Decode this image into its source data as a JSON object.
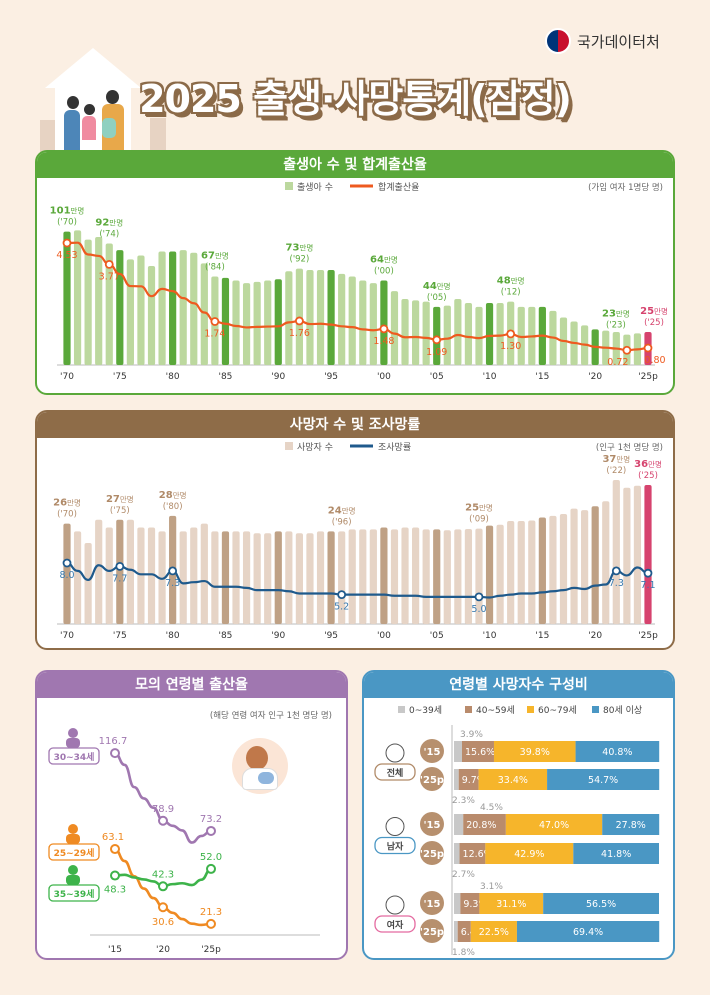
{
  "header": {
    "agency": "국가데이터처",
    "title": "2025 출생·사망통계(잠정)"
  },
  "colors": {
    "green": "#5aa83a",
    "lightgreen": "#bcd89e",
    "orange": "#ee5a1f",
    "pink": "#d6436e",
    "brown": "#8e6c48",
    "lightbrown": "#e6d4c6",
    "midbrown": "#bfa185",
    "navy": "#1f5a8c",
    "purple": "#a077b0",
    "blue": "#4a97c4",
    "gray": "#c8c8c8",
    "tan": "#b98b6c",
    "yellow": "#f6b52b"
  },
  "chart_data": [
    {
      "type": "bar+line",
      "title": "출생아 수 및 합계출산율",
      "legend": [
        "출생아 수",
        "합계출산율"
      ],
      "unit_note": "(가임 여자 1명당 명)",
      "x_ticks": [
        "'70",
        "'75",
        "'80",
        "'85",
        "'90",
        "'95",
        "'00",
        "'05",
        "'10",
        "'15",
        "'20",
        "'25p"
      ],
      "years": [
        1970,
        1971,
        1972,
        1973,
        1974,
        1975,
        1976,
        1977,
        1978,
        1979,
        1980,
        1981,
        1982,
        1983,
        1984,
        1985,
        1986,
        1987,
        1988,
        1989,
        1990,
        1991,
        1992,
        1993,
        1994,
        1995,
        1996,
        1997,
        1998,
        1999,
        2000,
        2001,
        2002,
        2003,
        2004,
        2005,
        2006,
        2007,
        2008,
        2009,
        2010,
        2011,
        2012,
        2013,
        2014,
        2015,
        2016,
        2017,
        2018,
        2019,
        2020,
        2021,
        2022,
        2023,
        2024,
        2025
      ],
      "births_10k": [
        101,
        102,
        95,
        97,
        92,
        87,
        80,
        83,
        75,
        86,
        86,
        87,
        85,
        77,
        67,
        66,
        64,
        62,
        63,
        64,
        65,
        71,
        73,
        72,
        72,
        72,
        69,
        67,
        64,
        62,
        64,
        56,
        50,
        49,
        48,
        44,
        45,
        50,
        47,
        44,
        47,
        47,
        48,
        44,
        44,
        44,
        41,
        36,
        33,
        30,
        27,
        26,
        25,
        23,
        24,
        25
      ],
      "tfr": [
        4.53,
        4.54,
        4.12,
        4.07,
        3.77,
        3.43,
        3.0,
        2.99,
        2.64,
        2.9,
        2.82,
        2.57,
        2.39,
        2.06,
        1.74,
        1.66,
        1.58,
        1.53,
        1.55,
        1.56,
        1.57,
        1.71,
        1.76,
        1.65,
        1.66,
        1.63,
        1.57,
        1.54,
        1.46,
        1.43,
        1.48,
        1.31,
        1.18,
        1.19,
        1.16,
        1.09,
        1.13,
        1.26,
        1.19,
        1.15,
        1.23,
        1.24,
        1.3,
        1.19,
        1.21,
        1.24,
        1.17,
        1.05,
        0.98,
        0.92,
        0.84,
        0.81,
        0.78,
        0.72,
        0.75,
        0.8
      ],
      "bar_labels": [
        {
          "year": 1970,
          "value": "101",
          "unit": "만명",
          "sub": "('70)"
        },
        {
          "year": 1974,
          "value": "92",
          "unit": "만명",
          "sub": "('74)"
        },
        {
          "year": 1984,
          "value": "67",
          "unit": "만명",
          "sub": "('84)"
        },
        {
          "year": 1992,
          "value": "73",
          "unit": "만명",
          "sub": "('92)"
        },
        {
          "year": 2000,
          "value": "64",
          "unit": "만명",
          "sub": "('00)"
        },
        {
          "year": 2005,
          "value": "44",
          "unit": "만명",
          "sub": "('05)"
        },
        {
          "year": 2012,
          "value": "48",
          "unit": "만명",
          "sub": "('12)"
        },
        {
          "year": 2023,
          "value": "23",
          "unit": "만명",
          "sub": "('23)"
        },
        {
          "year": 2025,
          "value": "25",
          "unit": "만명",
          "sub": "('25)"
        }
      ],
      "line_labels": [
        {
          "year": 1970,
          "text": "4.53"
        },
        {
          "year": 1974,
          "text": "3.77"
        },
        {
          "year": 1984,
          "text": "1.74"
        },
        {
          "year": 1992,
          "text": "1.76"
        },
        {
          "year": 2000,
          "text": "1.48"
        },
        {
          "year": 2005,
          "text": "1.09"
        },
        {
          "year": 2012,
          "text": "1.30"
        },
        {
          "year": 2023,
          "text": "0.72"
        },
        {
          "year": 2025,
          "text": "0.80"
        }
      ]
    },
    {
      "type": "bar+line",
      "title": "사망자 수 및 조사망률",
      "legend": [
        "사망자 수",
        "조사망률"
      ],
      "unit_note": "(인구 1천 명당 명)",
      "x_ticks": [
        "'70",
        "'75",
        "'80",
        "'85",
        "'90",
        "'95",
        "'00",
        "'05",
        "'10",
        "'15",
        "'20",
        "'25p"
      ],
      "deaths_10k": [
        26,
        24,
        21,
        27,
        25,
        27,
        27,
        25,
        25,
        24,
        28,
        24,
        25,
        26,
        24,
        24,
        24,
        24,
        23.5,
        23.5,
        24,
        24,
        23.5,
        23.5,
        24,
        24,
        24,
        24.5,
        24.5,
        24.5,
        25,
        24.5,
        25,
        25,
        24.5,
        24.5,
        24.3,
        24.5,
        24.6,
        24.7,
        25.5,
        25.7,
        26.7,
        26.7,
        26.8,
        27.6,
        28,
        28.5,
        29.9,
        29.5,
        30.5,
        31.8,
        37.3,
        35.3,
        35.8,
        36
      ],
      "cdr": [
        8.0,
        7.3,
        6.5,
        7.8,
        7.3,
        7.7,
        7.4,
        7.0,
        7.0,
        6.6,
        7.3,
        6.2,
        6.3,
        6.4,
        5.9,
        5.9,
        5.9,
        5.8,
        5.6,
        5.6,
        5.6,
        5.5,
        5.3,
        5.3,
        5.3,
        5.3,
        5.2,
        5.2,
        5.2,
        5.2,
        5.2,
        5.1,
        5.1,
        5.1,
        5.0,
        5.0,
        5.0,
        5.0,
        5.0,
        5.0,
        4.95,
        5.1,
        5.2,
        5.3,
        5.3,
        5.4,
        5.5,
        5.6,
        5.8,
        5.7,
        6.0,
        6.1,
        7.3,
        6.9,
        7.6,
        7.1
      ],
      "bar_labels": [
        {
          "year": 1970,
          "value": "26",
          "unit": "만명",
          "sub": "('70)"
        },
        {
          "year": 1975,
          "value": "27",
          "unit": "만명",
          "sub": "('75)"
        },
        {
          "year": 1980,
          "value": "28",
          "unit": "만명",
          "sub": "('80)"
        },
        {
          "year": 1996,
          "value": "24",
          "unit": "만명",
          "sub": "('96)"
        },
        {
          "year": 2009,
          "value": "25",
          "unit": "만명",
          "sub": "('09)"
        },
        {
          "year": 2022,
          "value": "37",
          "unit": "만명",
          "sub": "('22)"
        },
        {
          "year": 2025,
          "value": "36",
          "unit": "만명",
          "sub": "('25)"
        }
      ],
      "line_labels": [
        {
          "year": 1970,
          "text": "8.0"
        },
        {
          "year": 1975,
          "text": "7.7"
        },
        {
          "year": 1980,
          "text": "7.3"
        },
        {
          "year": 1996,
          "text": "5.2"
        },
        {
          "year": 2009,
          "text": "5.0"
        },
        {
          "year": 2022,
          "text": "7.3"
        },
        {
          "year": 2025,
          "text": "7.1"
        }
      ]
    },
    {
      "type": "line",
      "title": "모의 연령별 출산율",
      "unit_note": "(해당 연령 여자 인구 1천 명당 명)",
      "x_ticks": [
        "'15",
        "'20",
        "'25p"
      ],
      "years": [
        2015,
        2016,
        2017,
        2018,
        2019,
        2020,
        2021,
        2022,
        2023,
        2024,
        2025
      ],
      "series": [
        {
          "name": "30~34세",
          "color": "#a077b0",
          "values": [
            116.7,
            110.1,
            97.7,
            91.4,
            86.2,
            78.9,
            76.1,
            73.5,
            66.7,
            70.4,
            73.2
          ],
          "labels": [
            "116.7",
            "78.9",
            "73.2"
          ]
        },
        {
          "name": "25~29세",
          "color": "#ef8a22",
          "values": [
            63.1,
            56.4,
            47.9,
            41.0,
            35.7,
            30.6,
            27.5,
            24.0,
            21.4,
            20.7,
            21.3
          ],
          "labels": [
            "63.1",
            "30.6",
            "21.3"
          ]
        },
        {
          "name": "35~39세",
          "color": "#3db34a",
          "values": [
            48.3,
            48.7,
            47.2,
            46.1,
            45.0,
            42.3,
            43.5,
            44.0,
            43.0,
            46.0,
            52.0
          ],
          "labels": [
            "48.3",
            "42.3",
            "52.0"
          ]
        }
      ]
    },
    {
      "type": "stacked-bar",
      "title": "연령별 사망자수 구성비",
      "legend": [
        "0~39세",
        "40~59세",
        "60~79세",
        "80세 이상"
      ],
      "groups": [
        {
          "name": "전체",
          "rows": [
            {
              "year": "'15",
              "values": [
                3.9,
                15.6,
                39.8,
                40.8
              ],
              "labels": [
                "3.9%",
                "15.6%",
                "39.8%",
                "40.8%"
              ]
            },
            {
              "year": "'25p",
              "values": [
                2.3,
                9.7,
                33.4,
                54.7
              ],
              "labels": [
                "2.3%",
                "9.7%",
                "33.4%",
                "54.7%"
              ]
            }
          ]
        },
        {
          "name": "남자",
          "rows": [
            {
              "year": "'15",
              "values": [
                4.5,
                20.8,
                47.0,
                27.8
              ],
              "labels": [
                "4.5%",
                "20.8%",
                "47.0%",
                "27.8%"
              ]
            },
            {
              "year": "'25p",
              "values": [
                2.7,
                12.6,
                42.9,
                41.8
              ],
              "labels": [
                "2.7%",
                "12.6%",
                "42.9%",
                "41.8%"
              ]
            }
          ]
        },
        {
          "name": "여자",
          "rows": [
            {
              "year": "'15",
              "values": [
                3.1,
                9.3,
                31.1,
                56.5
              ],
              "labels": [
                "3.1%",
                "9.3%",
                "31.1%",
                "56.5%"
              ]
            },
            {
              "year": "'25p",
              "values": [
                1.8,
                6.4,
                22.5,
                69.4
              ],
              "labels": [
                "1.8%",
                "6.4%",
                "22.5%",
                "69.4%"
              ]
            }
          ]
        }
      ]
    }
  ]
}
